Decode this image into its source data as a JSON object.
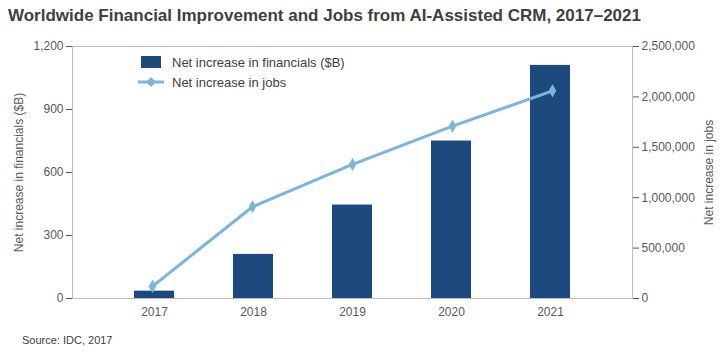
{
  "chart_data": {
    "type": "bar",
    "title": "Worldwide Financial Improvement and Jobs from AI-Assisted CRM, 2017–2021",
    "source": "Source: IDC, 2017",
    "categories": [
      "2017",
      "2018",
      "2019",
      "2020",
      "2021"
    ],
    "y_label": "Net increase in financials ($B)",
    "y2_label": "Net increase in jobs",
    "ylim": [
      0,
      1200
    ],
    "yticks": [
      0,
      300,
      600,
      900,
      {
        "value": 1200,
        "label": "1,200"
      }
    ],
    "y2lim": [
      0,
      2500000
    ],
    "y2ticks": [
      0,
      {
        "value": 500000,
        "label": "500,000"
      },
      {
        "value": 1000000,
        "label": "1,000,000"
      },
      {
        "value": 1500000,
        "label": "1,500,000"
      },
      {
        "value": 2000000,
        "label": "2,000,000"
      },
      {
        "value": 2500000,
        "label": "2,500,000"
      }
    ],
    "grid": false,
    "legend": "top-left",
    "series": [
      {
        "name": "Net increase in financials ($B)",
        "type": "bar",
        "color": "#1c4a7e",
        "values": [
          35,
          210,
          445,
          750,
          1110
        ]
      },
      {
        "name": "Net increase in jobs",
        "type": "line",
        "axis": "y2",
        "color": "#7db4dc",
        "marker": "diamond",
        "values": [
          120000,
          910000,
          1330000,
          1710000,
          2060000
        ]
      }
    ]
  }
}
